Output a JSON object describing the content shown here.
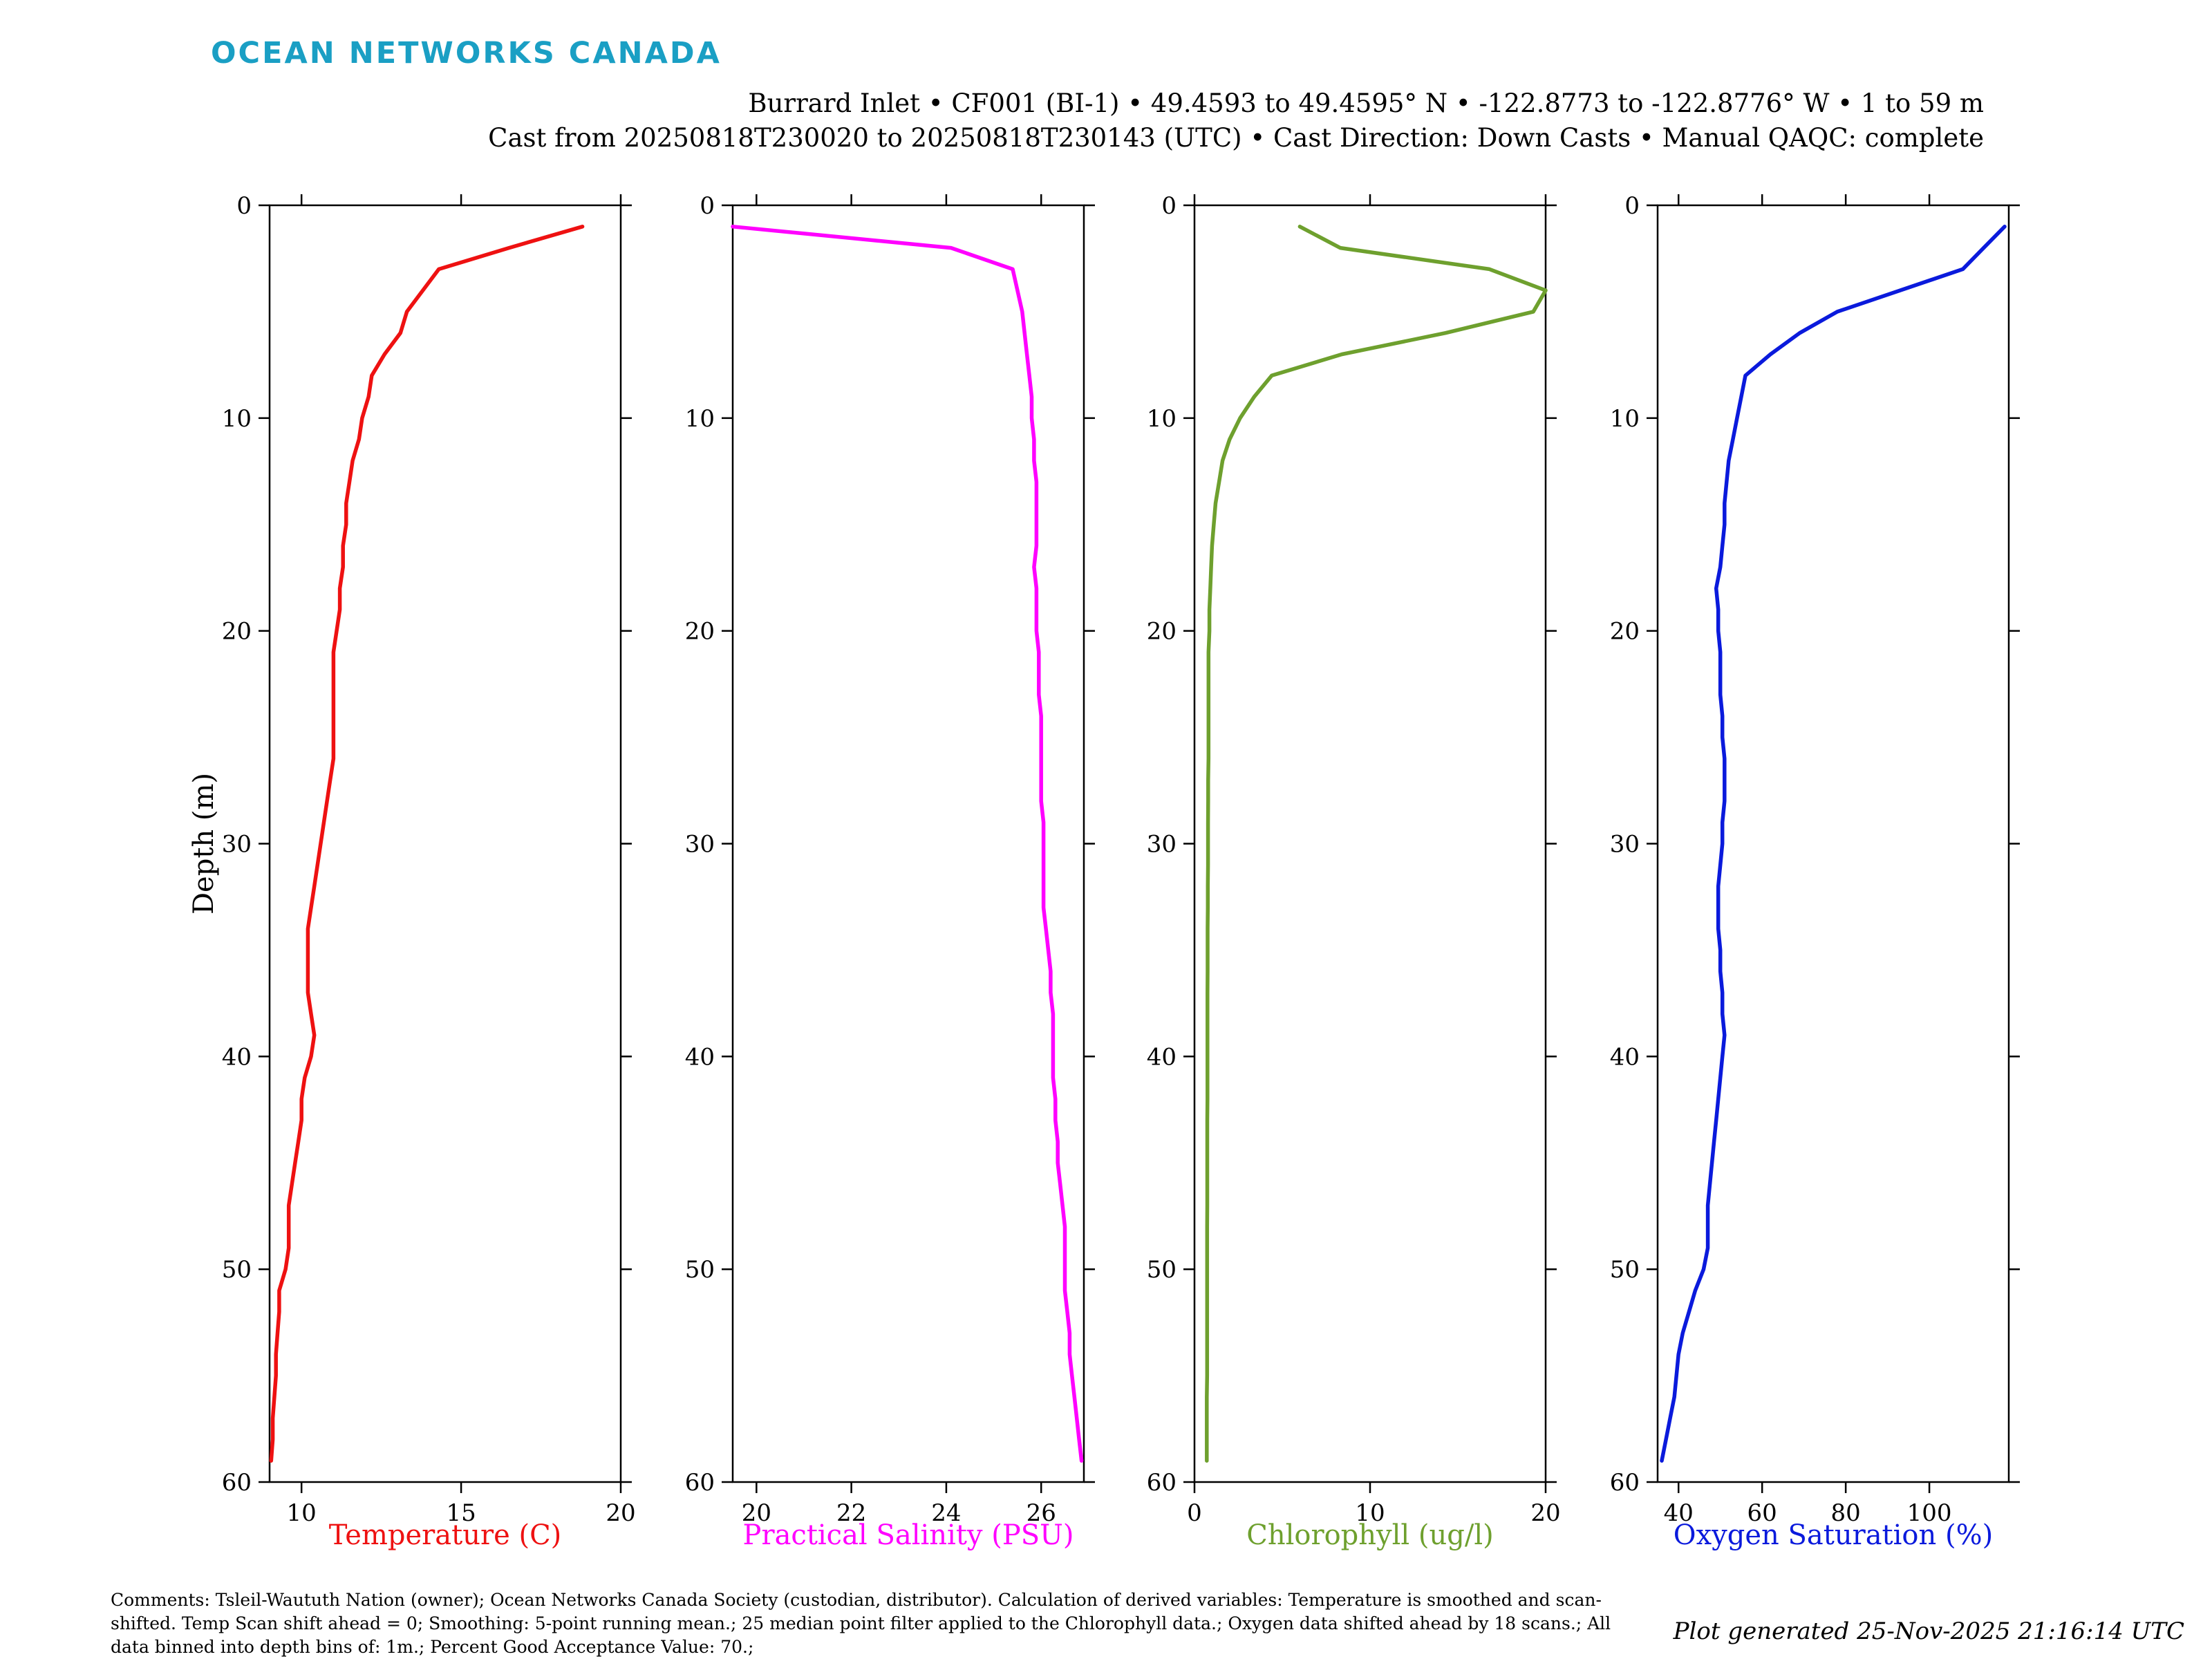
{
  "header": {
    "logo_text": "OCEAN NETWORKS CANADA",
    "logo_color": "#1a9fc4",
    "line1": "Burrard Inlet • CF001 (BI-1) • 49.4593 to 49.4595° N • -122.8773 to -122.8776° W • 1 to 59 m",
    "line2": "Cast from 20250818T230020 to 20250818T230143 (UTC) • Cast Direction: Down Casts • Manual QAQC: complete"
  },
  "footer": {
    "comments": "Comments: Tsleil-Waututh Nation (owner); Ocean Networks Canada Society (custodian, distributor). Calculation of derived variables: Temperature is smoothed and scan-shifted. Temp Scan shift ahead = 0; Smoothing: 5-point running mean.; 25 median point filter applied to the Chlorophyll data.; Oxygen data shifted ahead by 18 scans.; All data binned into depth bins of: 1m.; Percent Good Acceptance Value: 70.;",
    "generated": "Plot generated 25-Nov-2025 21:16:14 UTC"
  },
  "chart_data": [
    {
      "type": "line",
      "xlabel": "Temperature (C)",
      "ylabel": "Depth (m)",
      "color": "#ee1111",
      "xlim": [
        9,
        20
      ],
      "ylim": [
        0,
        60
      ],
      "y_reversed": true,
      "xticks": [
        10,
        15,
        20
      ],
      "yticks": [
        0,
        10,
        20,
        30,
        40,
        50,
        60
      ],
      "x": [
        18.8,
        16.5,
        14.3,
        13.8,
        13.3,
        13.1,
        12.6,
        12.2,
        12.1,
        11.9,
        11.8,
        11.6,
        11.5,
        11.4,
        11.4,
        11.3,
        11.3,
        11.2,
        11.2,
        11.1,
        11.0,
        11.0,
        11.0,
        11.0,
        11.0,
        11.0,
        10.9,
        10.8,
        10.7,
        10.6,
        10.5,
        10.4,
        10.3,
        10.2,
        10.2,
        10.2,
        10.2,
        10.3,
        10.4,
        10.3,
        10.1,
        10.0,
        10.0,
        9.9,
        9.8,
        9.7,
        9.6,
        9.6,
        9.6,
        9.5,
        9.3,
        9.3,
        9.25,
        9.2,
        9.2,
        9.15,
        9.1,
        9.1,
        9.05
      ],
      "y": [
        1,
        2,
        3,
        4,
        5,
        6,
        7,
        8,
        9,
        10,
        11,
        12,
        13,
        14,
        15,
        16,
        17,
        18,
        19,
        20,
        21,
        22,
        23,
        24,
        25,
        26,
        27,
        28,
        29,
        30,
        31,
        32,
        33,
        34,
        35,
        36,
        37,
        38,
        39,
        40,
        41,
        42,
        43,
        44,
        45,
        46,
        47,
        48,
        49,
        50,
        51,
        52,
        53,
        54,
        55,
        56,
        57,
        58,
        59
      ]
    },
    {
      "type": "line",
      "xlabel": "Practical Salinity (PSU)",
      "ylabel": "",
      "color": "#ff00ff",
      "xlim": [
        19.5,
        26.9
      ],
      "ylim": [
        0,
        60
      ],
      "y_reversed": true,
      "xticks": [
        20,
        22,
        24,
        26
      ],
      "yticks": [
        0,
        10,
        20,
        30,
        40,
        50,
        60
      ],
      "x": [
        19.5,
        24.1,
        25.4,
        25.5,
        25.6,
        25.65,
        25.7,
        25.75,
        25.8,
        25.8,
        25.85,
        25.85,
        25.9,
        25.9,
        25.9,
        25.9,
        25.85,
        25.9,
        25.9,
        25.9,
        25.95,
        25.95,
        25.95,
        26.0,
        26.0,
        26.0,
        26.0,
        26.0,
        26.05,
        26.05,
        26.05,
        26.05,
        26.05,
        26.1,
        26.15,
        26.2,
        26.2,
        26.25,
        26.25,
        26.25,
        26.25,
        26.3,
        26.3,
        26.35,
        26.35,
        26.4,
        26.45,
        26.5,
        26.5,
        26.5,
        26.5,
        26.55,
        26.6,
        26.6,
        26.65,
        26.7,
        26.75,
        26.8,
        26.85
      ],
      "y": [
        1,
        2,
        3,
        4,
        5,
        6,
        7,
        8,
        9,
        10,
        11,
        12,
        13,
        14,
        15,
        16,
        17,
        18,
        19,
        20,
        21,
        22,
        23,
        24,
        25,
        26,
        27,
        28,
        29,
        30,
        31,
        32,
        33,
        34,
        35,
        36,
        37,
        38,
        39,
        40,
        41,
        42,
        43,
        44,
        45,
        46,
        47,
        48,
        49,
        50,
        51,
        52,
        53,
        54,
        55,
        56,
        57,
        58,
        59
      ]
    },
    {
      "type": "line",
      "xlabel": "Chlorophyll (ug/l)",
      "ylabel": "",
      "color": "#6ea02e",
      "xlim": [
        0,
        20
      ],
      "ylim": [
        0,
        60
      ],
      "y_reversed": true,
      "xticks": [
        0,
        10,
        20
      ],
      "yticks": [
        0,
        10,
        20,
        30,
        40,
        50,
        60
      ],
      "x": [
        6.0,
        8.3,
        16.8,
        20.0,
        19.3,
        14.3,
        8.4,
        4.4,
        3.4,
        2.6,
        2.0,
        1.6,
        1.4,
        1.2,
        1.1,
        1.0,
        0.95,
        0.9,
        0.85,
        0.85,
        0.8,
        0.8,
        0.8,
        0.8,
        0.8,
        0.8,
        0.78,
        0.78,
        0.77,
        0.77,
        0.77,
        0.76,
        0.76,
        0.75,
        0.75,
        0.75,
        0.74,
        0.74,
        0.74,
        0.74,
        0.74,
        0.74,
        0.73,
        0.73,
        0.73,
        0.73,
        0.73,
        0.72,
        0.72,
        0.72,
        0.72,
        0.72,
        0.72,
        0.72,
        0.72,
        0.7,
        0.7,
        0.7,
        0.7
      ],
      "y": [
        1,
        2,
        3,
        4,
        5,
        6,
        7,
        8,
        9,
        10,
        11,
        12,
        13,
        14,
        15,
        16,
        17,
        18,
        19,
        20,
        21,
        22,
        23,
        24,
        25,
        26,
        27,
        28,
        29,
        30,
        31,
        32,
        33,
        34,
        35,
        36,
        37,
        38,
        39,
        40,
        41,
        42,
        43,
        44,
        45,
        46,
        47,
        48,
        49,
        50,
        51,
        52,
        53,
        54,
        55,
        56,
        57,
        58,
        59
      ]
    },
    {
      "type": "line",
      "xlabel": "Oxygen Saturation (%)",
      "ylabel": "",
      "color": "#0a1adc",
      "xlim": [
        35,
        119
      ],
      "ylim": [
        0,
        60
      ],
      "y_reversed": true,
      "xticks": [
        40,
        60,
        80,
        100
      ],
      "yticks": [
        0,
        10,
        20,
        30,
        40,
        50,
        60
      ],
      "x": [
        118,
        113,
        108,
        93,
        78,
        69,
        62,
        56,
        55,
        54,
        53,
        52,
        51.5,
        51,
        51,
        50.5,
        50,
        49,
        49.5,
        49.5,
        50,
        50,
        50,
        50.5,
        50.5,
        51,
        51,
        51,
        50.5,
        50.5,
        50,
        49.5,
        49.5,
        49.5,
        50,
        50,
        50.5,
        50.5,
        51,
        50.5,
        50,
        49.5,
        49,
        48.5,
        48,
        47.5,
        47,
        47,
        47,
        46,
        44,
        42.5,
        41,
        40,
        39.5,
        39,
        38,
        37,
        36
      ],
      "y": [
        1,
        2,
        3,
        4,
        5,
        6,
        7,
        8,
        9,
        10,
        11,
        12,
        13,
        14,
        15,
        16,
        17,
        18,
        19,
        20,
        21,
        22,
        23,
        24,
        25,
        26,
        27,
        28,
        29,
        30,
        31,
        32,
        33,
        34,
        35,
        36,
        37,
        38,
        39,
        40,
        41,
        42,
        43,
        44,
        45,
        46,
        47,
        48,
        49,
        50,
        51,
        52,
        53,
        54,
        55,
        56,
        57,
        58,
        59
      ]
    }
  ]
}
